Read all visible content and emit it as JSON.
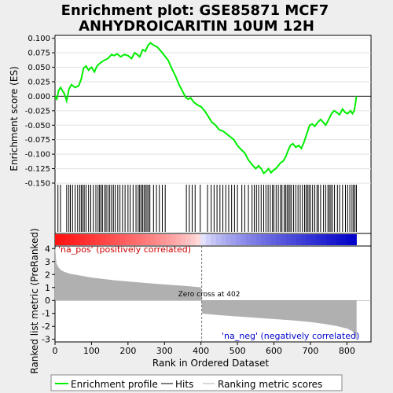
{
  "title_line1": "Enrichment plot: GSE85871 MCF7",
  "title_line2": "ANHYDROICARITIN 10UM 12H",
  "es_panel": {
    "ylabel": "Enrichment score (ES)",
    "ylim": [
      -0.15,
      0.105
    ],
    "yticks": [
      "0.100",
      "0.075",
      "0.050",
      "0.025",
      "0.000",
      "-0.025",
      "-0.050",
      "-0.075",
      "-0.100",
      "-0.125",
      "-0.150"
    ]
  },
  "rank_panel": {
    "ylabel": "Ranked list metric (PreRanked)",
    "xlabel": "Rank in Ordered Dataset",
    "ylim": [
      -3.2,
      4.2
    ],
    "yticks": [
      "4",
      "3",
      "2",
      "1",
      "0",
      "-1",
      "-2",
      "-3"
    ],
    "xticks": [
      "0",
      "100",
      "200",
      "300",
      "400",
      "500",
      "600",
      "700",
      "800"
    ],
    "pos_label": "'na_pos' (positively correlated)",
    "neg_label": "'na_neg' (negatively correlated)",
    "zero_cross_label": "Zero cross at 402",
    "zero_cross": 402
  },
  "legend": {
    "enrichment_profile": "Enrichment profile",
    "hits": "Hits",
    "ranking_metric": "Ranking metric scores"
  },
  "colors": {
    "enrichment_line": "#00ee00",
    "pos_label": "#cc0000",
    "neg_label": "#0000cc",
    "metric_fill": "#b0b0b0"
  },
  "chart_data": {
    "type": "line",
    "n_genes": 826,
    "xlim": [
      0,
      866
    ],
    "es_curve": [
      [
        0,
        0.0
      ],
      [
        5,
        -0.005
      ],
      [
        10,
        0.01
      ],
      [
        15,
        0.015
      ],
      [
        25,
        0.005
      ],
      [
        32,
        -0.008
      ],
      [
        38,
        0.012
      ],
      [
        45,
        0.02
      ],
      [
        55,
        0.015
      ],
      [
        65,
        0.018
      ],
      [
        72,
        0.03
      ],
      [
        78,
        0.048
      ],
      [
        85,
        0.052
      ],
      [
        92,
        0.045
      ],
      [
        100,
        0.05
      ],
      [
        108,
        0.042
      ],
      [
        115,
        0.052
      ],
      [
        125,
        0.058
      ],
      [
        135,
        0.062
      ],
      [
        145,
        0.065
      ],
      [
        155,
        0.072
      ],
      [
        162,
        0.07
      ],
      [
        170,
        0.073
      ],
      [
        180,
        0.068
      ],
      [
        190,
        0.072
      ],
      [
        200,
        0.07
      ],
      [
        210,
        0.065
      ],
      [
        218,
        0.075
      ],
      [
        225,
        0.072
      ],
      [
        232,
        0.068
      ],
      [
        240,
        0.08
      ],
      [
        248,
        0.078
      ],
      [
        255,
        0.088
      ],
      [
        262,
        0.092
      ],
      [
        270,
        0.088
      ],
      [
        280,
        0.085
      ],
      [
        290,
        0.078
      ],
      [
        300,
        0.07
      ],
      [
        310,
        0.062
      ],
      [
        320,
        0.048
      ],
      [
        330,
        0.035
      ],
      [
        340,
        0.02
      ],
      [
        350,
        0.008
      ],
      [
        358,
        -0.002
      ],
      [
        365,
        -0.005
      ],
      [
        372,
        -0.003
      ],
      [
        380,
        -0.01
      ],
      [
        390,
        -0.015
      ],
      [
        400,
        -0.018
      ],
      [
        410,
        -0.025
      ],
      [
        420,
        -0.035
      ],
      [
        430,
        -0.045
      ],
      [
        440,
        -0.05
      ],
      [
        450,
        -0.058
      ],
      [
        460,
        -0.06
      ],
      [
        470,
        -0.065
      ],
      [
        480,
        -0.07
      ],
      [
        490,
        -0.075
      ],
      [
        500,
        -0.085
      ],
      [
        510,
        -0.092
      ],
      [
        520,
        -0.098
      ],
      [
        530,
        -0.11
      ],
      [
        540,
        -0.118
      ],
      [
        550,
        -0.125
      ],
      [
        558,
        -0.12
      ],
      [
        565,
        -0.125
      ],
      [
        572,
        -0.133
      ],
      [
        578,
        -0.13
      ],
      [
        585,
        -0.125
      ],
      [
        592,
        -0.132
      ],
      [
        598,
        -0.128
      ],
      [
        605,
        -0.125
      ],
      [
        612,
        -0.12
      ],
      [
        618,
        -0.115
      ],
      [
        625,
        -0.112
      ],
      [
        632,
        -0.105
      ],
      [
        638,
        -0.095
      ],
      [
        645,
        -0.085
      ],
      [
        652,
        -0.082
      ],
      [
        660,
        -0.088
      ],
      [
        668,
        -0.085
      ],
      [
        675,
        -0.09
      ],
      [
        682,
        -0.08
      ],
      [
        690,
        -0.065
      ],
      [
        698,
        -0.05
      ],
      [
        705,
        -0.048
      ],
      [
        712,
        -0.052
      ],
      [
        720,
        -0.045
      ],
      [
        728,
        -0.04
      ],
      [
        735,
        -0.045
      ],
      [
        742,
        -0.05
      ],
      [
        750,
        -0.04
      ],
      [
        758,
        -0.03
      ],
      [
        765,
        -0.025
      ],
      [
        772,
        -0.028
      ],
      [
        780,
        -0.032
      ],
      [
        788,
        -0.022
      ],
      [
        795,
        -0.028
      ],
      [
        802,
        -0.03
      ],
      [
        810,
        -0.025
      ],
      [
        815,
        -0.03
      ],
      [
        820,
        -0.025
      ],
      [
        824,
        -0.01
      ],
      [
        826,
        0.0
      ]
    ],
    "hits": [
      8,
      15,
      32,
      38,
      42,
      48,
      55,
      62,
      68,
      72,
      76,
      80,
      85,
      92,
      98,
      105,
      112,
      118,
      122,
      126,
      130,
      136,
      140,
      145,
      150,
      155,
      160,
      165,
      172,
      178,
      185,
      192,
      200,
      206,
      214,
      222,
      228,
      232,
      236,
      240,
      244,
      248,
      252,
      256,
      260,
      270,
      278,
      286,
      294,
      302,
      360,
      368,
      376,
      384,
      398,
      418,
      428,
      436,
      444,
      452,
      460,
      468,
      476,
      484,
      492,
      500,
      512,
      520,
      530,
      540,
      546,
      552,
      558,
      565,
      572,
      578,
      584,
      590,
      596,
      600,
      606,
      612,
      618,
      622,
      628,
      632,
      636,
      640,
      644,
      648,
      654,
      660,
      666,
      672,
      678,
      684,
      688,
      692,
      696,
      700,
      706,
      712,
      718,
      722,
      728,
      736,
      742,
      748,
      752,
      756,
      760,
      766,
      774,
      780,
      788,
      796,
      802,
      808,
      814,
      818,
      822,
      826
    ],
    "metric_curve": [
      [
        0,
        4.0
      ],
      [
        3,
        2.9
      ],
      [
        8,
        2.6
      ],
      [
        15,
        2.35
      ],
      [
        25,
        2.2
      ],
      [
        40,
        2.05
      ],
      [
        60,
        1.95
      ],
      [
        80,
        1.85
      ],
      [
        100,
        1.75
      ],
      [
        130,
        1.65
      ],
      [
        160,
        1.55
      ],
      [
        200,
        1.45
      ],
      [
        250,
        1.33
      ],
      [
        300,
        1.22
      ],
      [
        350,
        1.12
      ],
      [
        400,
        1.0
      ],
      [
        402,
        0.0
      ],
      [
        404,
        -1.0
      ],
      [
        450,
        -1.12
      ],
      [
        500,
        -1.22
      ],
      [
        550,
        -1.32
      ],
      [
        600,
        -1.42
      ],
      [
        650,
        -1.52
      ],
      [
        700,
        -1.65
      ],
      [
        740,
        -1.8
      ],
      [
        770,
        -1.95
      ],
      [
        800,
        -2.15
      ],
      [
        815,
        -2.35
      ],
      [
        822,
        -2.6
      ],
      [
        826,
        -3.0
      ]
    ]
  }
}
